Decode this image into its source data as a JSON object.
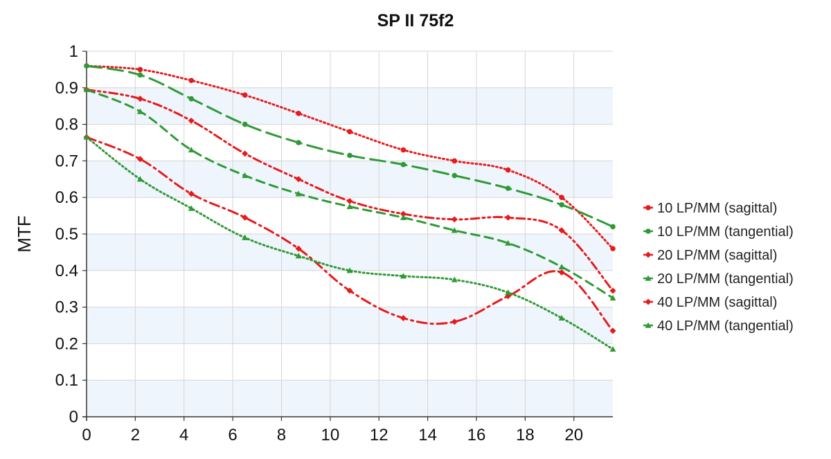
{
  "chart_data": {
    "type": "line",
    "title": "SP II  75f2",
    "xlabel": "",
    "ylabel": "MTF",
    "xlim": [
      0,
      21.6
    ],
    "ylim": [
      0,
      1
    ],
    "x_ticks": [
      "0",
      "2",
      "4",
      "6",
      "8",
      "10",
      "12",
      "14",
      "16",
      "18",
      "20"
    ],
    "y_ticks": [
      "0",
      "0.1",
      "0.2",
      "0.3",
      "0.4",
      "0.5",
      "0.6",
      "0.7",
      "0.8",
      "0.9",
      "1"
    ],
    "grid": true,
    "alternating_bands": true,
    "band_color": "#eef5fc",
    "legend_position": "right",
    "series": [
      {
        "name": "10 LP/MM (sagittal)",
        "color": "#e8191b",
        "dash": "dotted",
        "marker": "circle",
        "x": [
          0,
          2.2,
          4.3,
          6.5,
          8.7,
          10.8,
          13.0,
          15.1,
          17.3,
          19.5,
          21.6
        ],
        "y": [
          0.96,
          0.95,
          0.92,
          0.88,
          0.83,
          0.78,
          0.73,
          0.7,
          0.675,
          0.6,
          0.46
        ]
      },
      {
        "name": "10 LP/MM (tangential)",
        "color": "#2e9a35",
        "dash": "longdash",
        "marker": "circle",
        "x": [
          0,
          2.2,
          4.3,
          6.5,
          8.7,
          10.8,
          13.0,
          15.1,
          17.3,
          19.5,
          21.6
        ],
        "y": [
          0.96,
          0.935,
          0.87,
          0.8,
          0.75,
          0.715,
          0.69,
          0.66,
          0.625,
          0.58,
          0.52
        ]
      },
      {
        "name": "20 LP/MM (sagittal)",
        "color": "#e8191b",
        "dash": "dashdotdot",
        "marker": "diamond",
        "x": [
          0,
          2.2,
          4.3,
          6.5,
          8.7,
          10.8,
          13.0,
          15.1,
          17.3,
          19.5,
          21.6
        ],
        "y": [
          0.895,
          0.87,
          0.81,
          0.72,
          0.65,
          0.59,
          0.555,
          0.54,
          0.545,
          0.51,
          0.345
        ]
      },
      {
        "name": "20 LP/MM (tangential)",
        "color": "#2e9a35",
        "dash": "dashed",
        "marker": "triangle",
        "x": [
          0,
          2.2,
          4.3,
          6.5,
          8.7,
          10.8,
          13.0,
          15.1,
          17.3,
          19.5,
          21.6
        ],
        "y": [
          0.895,
          0.835,
          0.73,
          0.66,
          0.61,
          0.575,
          0.545,
          0.51,
          0.475,
          0.41,
          0.325
        ]
      },
      {
        "name": "40 LP/MM (sagittal)",
        "color": "#e8191b",
        "dash": "dashdot",
        "marker": "diamond",
        "x": [
          0,
          2.2,
          4.3,
          6.5,
          8.7,
          10.8,
          13.0,
          15.1,
          17.3,
          19.5,
          21.6
        ],
        "y": [
          0.765,
          0.705,
          0.61,
          0.545,
          0.46,
          0.345,
          0.27,
          0.26,
          0.33,
          0.395,
          0.235
        ]
      },
      {
        "name": "40 LP/MM (tangential)",
        "color": "#2e9a35",
        "dash": "dotted",
        "marker": "triangle",
        "x": [
          0,
          2.2,
          4.3,
          6.5,
          8.7,
          10.8,
          13.0,
          15.1,
          17.3,
          19.5,
          21.6
        ],
        "y": [
          0.765,
          0.65,
          0.57,
          0.49,
          0.44,
          0.4,
          0.385,
          0.375,
          0.34,
          0.27,
          0.185
        ]
      }
    ]
  }
}
